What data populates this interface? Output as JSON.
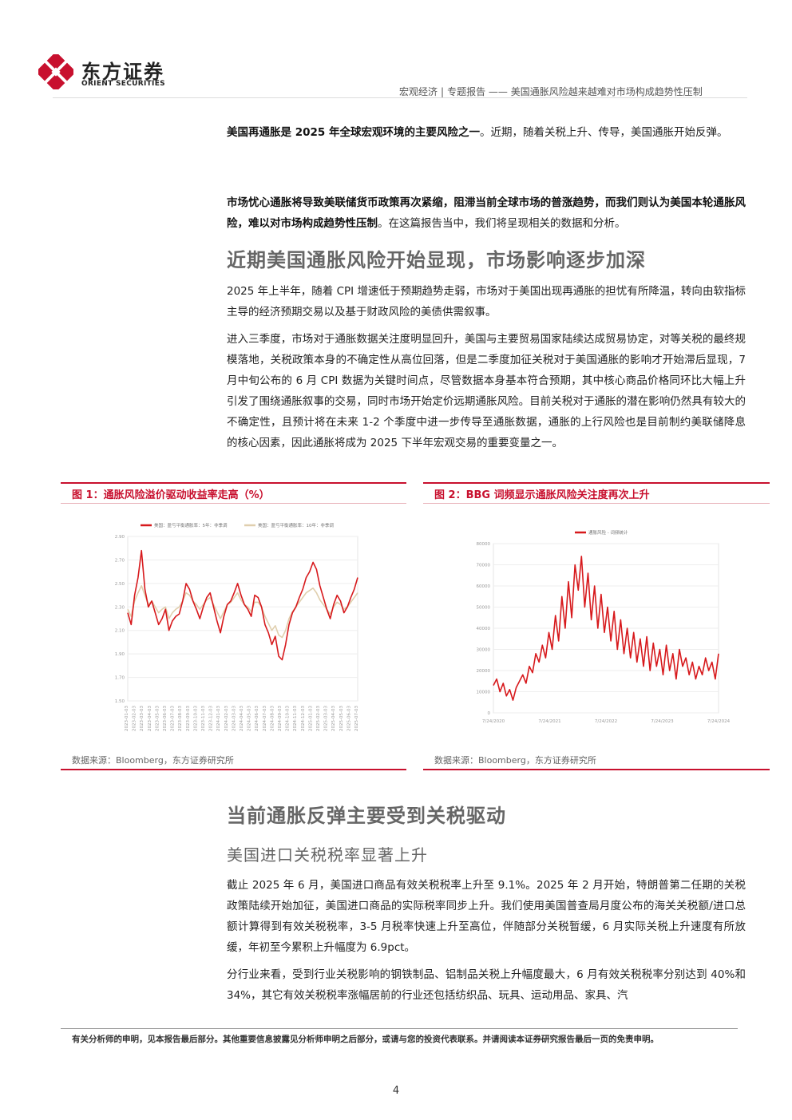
{
  "header": {
    "logo_cn": "东方证券",
    "logo_en": "ORIENT SECURITIES",
    "category": "宏观经济",
    "report_type": "专题报告",
    "dash": "——",
    "report_title": "美国通胀风险越来越难对市场构成趋势性压制"
  },
  "body": {
    "p1_bold": "美国再通胀是 2025 年全球宏观环境的主要风险之一",
    "p1_rest": "。近期，随着关税上升、传导，美国通胀开始反弹。",
    "p2_bold": "市场忧心通胀将导致美联储货币政策再次紧缩，阻滞当前全球市场的普涨趋势，而我们则认为美国本轮通胀风险，难以对市场构成趋势性压制",
    "p2_rest": "。在这篇报告当中，我们将呈现相关的数据和分析。",
    "section1_title": "近期美国通胀风险开始显现，市场影响逐步加深",
    "p3": "2025 年上半年，随着 CPI 增速低于预期趋势走弱，市场对于美国出现再通胀的担忧有所降温，转向由软指标主导的经济预期交易以及基于财政风险的美债供需叙事。",
    "p4": "进入三季度，市场对于通胀数据关注度明显回升，美国与主要贸易国家陆续达成贸易协定，对等关税的最终规模落地，关税政策本身的不确定性从高位回落，但是二季度加征关税对于美国通胀的影响才开始滞后显现，7 月中旬公布的 6 月 CPI 数据为关键时间点，尽管数据本身基本符合预期，其中核心商品价格同环比大幅上升引发了围绕通胀叙事的交易，同时市场开始定价远期通胀风险。目前关税对于通胀的潜在影响仍然具有较大的不确定性，且预计将在未来 1-2 个季度中进一步传导至通胀数据，通胀的上行风险也是目前制约美联储降息的核心因素，因此通胀将成为 2025 下半年宏观交易的重要变量之一。",
    "section2_title": "当前通胀反弹主要受到关税驱动",
    "section2_sub": "美国进口关税税率显著上升",
    "p5": "截止 2025 年 6 月，美国进口商品有效关税税率上升至 9.1%。2025 年 2 月开始，特朗普第二任期的关税政策陆续开始加征，美国进口商品的实际税率同步上升。我们使用美国普查局月度公布的海关关税额/进口总额计算得到有效关税税率，3-5 月税率快速上升至高位，伴随部分关税暂缓，6 月实际关税上升速度有所放缓，年初至今累积上升幅度为 6.9pct。",
    "p6": "分行业来看，受到行业关税影响的钢铁制品、铝制品关税上升幅度最大，6 月有效关税税率分别达到 40%和 34%，其它有效关税税率涨幅居前的行业还包括纺织品、玩具、运动用品、家具、汽"
  },
  "figure1": {
    "title": "图 1：通胀风险溢价驱动收益率走高（%）",
    "source": "数据来源：Bloomberg，东方证券研究所"
  },
  "figure2": {
    "title": "图 2：BBG 词频显示通胀风险关注度再次上升",
    "source": "数据来源：Bloomberg，东方证券研究所"
  },
  "footer": {
    "disclaimer": "有关分析师的申明，见本报告最后部分。其他重要信息披露见分析师申明之后部分，或请与您的投资代表联系。并请阅读本证券研究报告最后一页的免责申明。",
    "page": "4"
  },
  "colors": {
    "brand_red": "#c8102e",
    "beige": "#e0cfae"
  },
  "chart_data": [
    {
      "type": "line",
      "chart": "figure1",
      "ylim": [
        1.5,
        2.9
      ],
      "yticks": [
        "2.90",
        "2.70",
        "2.50",
        "2.30",
        "2.10",
        "1.90",
        "1.70",
        "1.50"
      ],
      "xticks": [
        "2023-01-03",
        "2023-02-03",
        "2023-03-03",
        "2023-04-03",
        "2023-05-03",
        "2023-06-03",
        "2023-07-03",
        "2023-08-03",
        "2023-09-03",
        "2023-10-03",
        "2023-11-03",
        "2023-12-03",
        "2024-01-03",
        "2024-02-03",
        "2024-03-03",
        "2024-04-03",
        "2024-05-03",
        "2024-06-03",
        "2024-07-03",
        "2024-08-03",
        "2024-09-03",
        "2024-10-03",
        "2024-11-03",
        "2024-12-03",
        "2025-01-03",
        "2025-02-03",
        "2025-03-03",
        "2025-04-03",
        "2025-05-03",
        "2025-06-03",
        "2025-07-03"
      ],
      "legend": [
        "美国：盈亏平衡通胀率：5年：非季调",
        "美国：盈亏平衡通胀率：10年：非季调"
      ],
      "series": [
        {
          "name": "美国：盈亏平衡通胀率：5年：非季调",
          "color": "#d7191c",
          "values": [
            2.25,
            2.15,
            2.4,
            2.55,
            2.78,
            2.45,
            2.3,
            2.35,
            2.25,
            2.15,
            2.2,
            2.28,
            2.1,
            2.18,
            2.22,
            2.24,
            2.35,
            2.5,
            2.45,
            2.35,
            2.28,
            2.2,
            2.3,
            2.38,
            2.42,
            2.3,
            2.18,
            2.08,
            2.22,
            2.32,
            2.35,
            2.42,
            2.5,
            2.4,
            2.32,
            2.28,
            2.22,
            2.4,
            2.38,
            2.3,
            2.15,
            2.08,
            1.98,
            2.05,
            1.88,
            1.85,
            1.98,
            2.15,
            2.25,
            2.3,
            2.38,
            2.45,
            2.55,
            2.6,
            2.68,
            2.62,
            2.48,
            2.38,
            2.28,
            2.2,
            2.32,
            2.4,
            2.35,
            2.25,
            2.3,
            2.38,
            2.45,
            2.55
          ]
        },
        {
          "name": "美国：盈亏平衡通胀率：10年：非季调",
          "color": "#e0cfae",
          "values": [
            2.28,
            2.22,
            2.35,
            2.42,
            2.48,
            2.4,
            2.32,
            2.35,
            2.3,
            2.25,
            2.28,
            2.3,
            2.2,
            2.25,
            2.28,
            2.3,
            2.35,
            2.42,
            2.4,
            2.35,
            2.32,
            2.28,
            2.32,
            2.36,
            2.38,
            2.32,
            2.26,
            2.2,
            2.26,
            2.32,
            2.34,
            2.38,
            2.42,
            2.36,
            2.32,
            2.3,
            2.26,
            2.34,
            2.34,
            2.3,
            2.22,
            2.16,
            2.1,
            2.14,
            2.06,
            2.04,
            2.1,
            2.2,
            2.26,
            2.3,
            2.34,
            2.38,
            2.42,
            2.44,
            2.46,
            2.42,
            2.36,
            2.32,
            2.28,
            2.24,
            2.3,
            2.34,
            2.32,
            2.28,
            2.3,
            2.34,
            2.38,
            2.42
          ]
        }
      ]
    },
    {
      "type": "line",
      "chart": "figure2",
      "ylim": [
        0,
        80000
      ],
      "yticks": [
        "80000",
        "70000",
        "60000",
        "50000",
        "40000",
        "30000",
        "20000",
        "10000",
        "0"
      ],
      "xticks": [
        "7/24/2020",
        "7/24/2021",
        "7/24/2022",
        "7/24/2023",
        "7/24/2024"
      ],
      "legend": [
        "通胀风险 - 词频统计"
      ],
      "series": [
        {
          "name": "通胀风险 - 词频统计",
          "color": "#d7191c",
          "values": [
            13000,
            16000,
            10000,
            14000,
            8000,
            11000,
            6000,
            12000,
            15000,
            18000,
            14000,
            22000,
            19000,
            28000,
            24000,
            32000,
            26000,
            38000,
            30000,
            46000,
            34000,
            55000,
            40000,
            62000,
            45000,
            70000,
            58000,
            74000,
            50000,
            66000,
            44000,
            60000,
            40000,
            56000,
            38000,
            50000,
            34000,
            48000,
            30000,
            44000,
            28000,
            40000,
            26000,
            38000,
            24000,
            35000,
            22000,
            36000,
            20000,
            33000,
            22000,
            30000,
            18000,
            32000,
            20000,
            28000,
            16000,
            30000,
            22000,
            26000,
            18000,
            24000,
            16000,
            22000,
            18000,
            26000,
            20000,
            24000,
            16000,
            28000
          ]
        }
      ]
    }
  ]
}
